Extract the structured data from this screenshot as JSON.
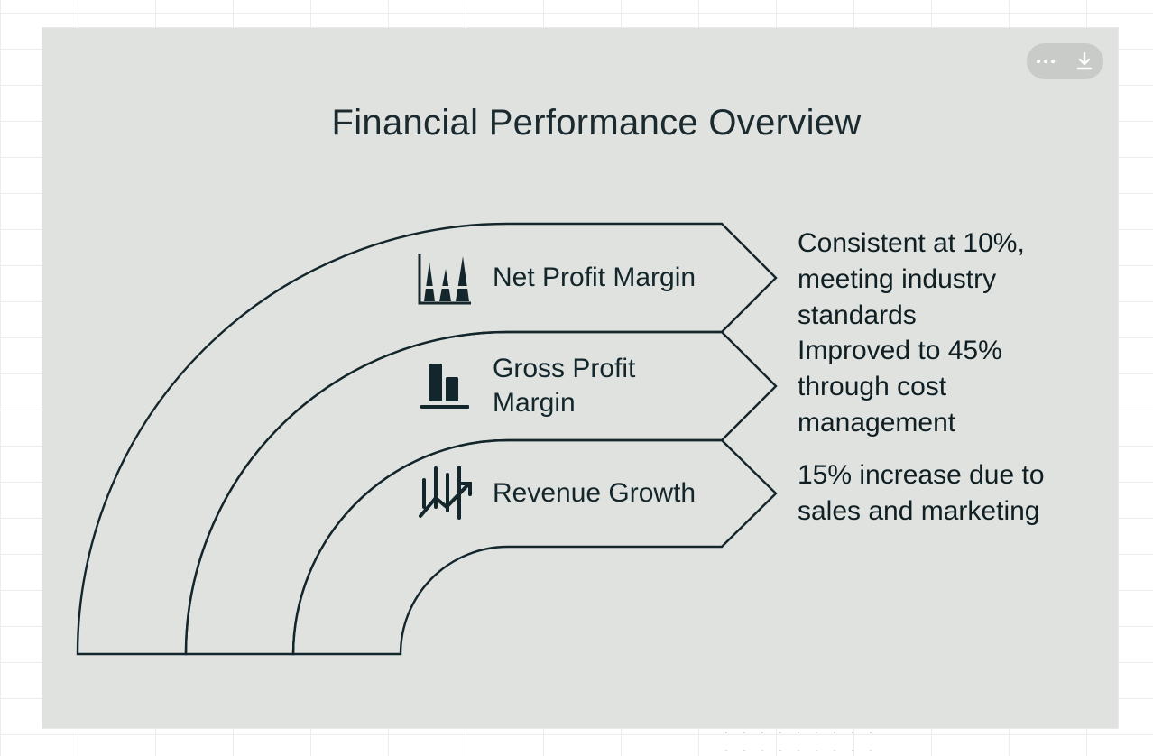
{
  "title": "Financial Performance Overview",
  "items": [
    {
      "label": "Net Profit Margin",
      "icon": "peak-chart-icon",
      "description": "Consistent at 10%,\nmeeting industry\nstandards"
    },
    {
      "label": "Gross Profit\nMargin",
      "icon": "bar-chart-icon",
      "description": "Improved to 45%\nthrough cost\nmanagement"
    },
    {
      "label": "Revenue Growth",
      "icon": "growth-chart-icon",
      "description": "15% increase due to\nsales and marketing"
    }
  ],
  "toolbar": {
    "more_icon": "more-icon",
    "download_icon": "download-icon"
  },
  "colors": {
    "background": "#e0e2df",
    "stroke": "#13262b"
  }
}
